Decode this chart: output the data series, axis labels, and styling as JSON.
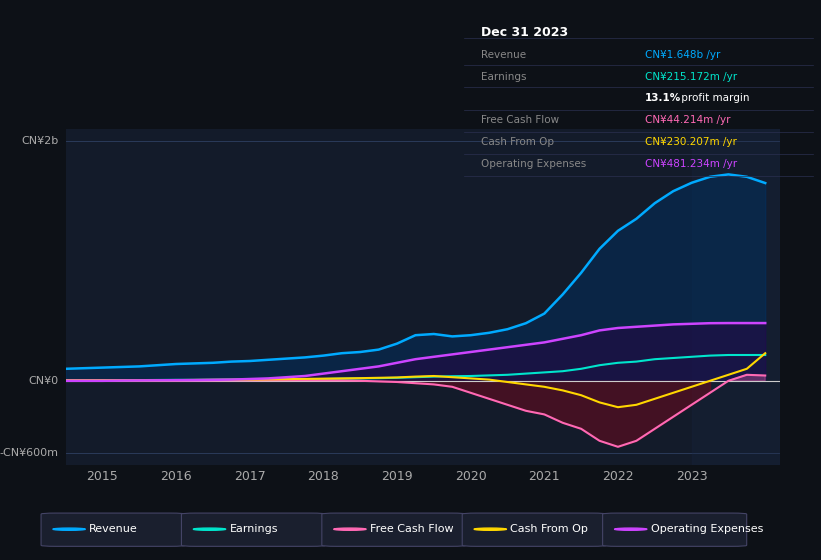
{
  "bg_color": "#0d1117",
  "plot_bg_color": "#131b2a",
  "title_box_text": "Dec 31 2023",
  "info_rows": [
    {
      "label": "Revenue",
      "value": "CN¥1.648b /yr",
      "color": "#00aaff"
    },
    {
      "label": "Earnings",
      "value": "CN¥215.172m /yr",
      "color": "#00e5cc"
    },
    {
      "label": "",
      "value": "13.1% profit margin",
      "color": "#ffffff"
    },
    {
      "label": "Free Cash Flow",
      "value": "CN¥44.214m /yr",
      "color": "#ff69b4"
    },
    {
      "label": "Cash From Op",
      "value": "CN¥230.207m /yr",
      "color": "#ffd700"
    },
    {
      "label": "Operating Expenses",
      "value": "CN¥481.234m /yr",
      "color": "#cc44ff"
    }
  ],
  "ylabel_top": "CN¥2b",
  "ylabel_mid": "CN¥0",
  "ylabel_bot": "-CN¥600m",
  "xlim": [
    2014.5,
    2024.2
  ],
  "ylim_min": -700,
  "ylim_max": 2100,
  "y_zero": 0,
  "y_top": 2000,
  "y_bot": -600,
  "xticks": [
    2015,
    2016,
    2017,
    2018,
    2019,
    2020,
    2021,
    2022,
    2023
  ],
  "legend_items": [
    {
      "label": "Revenue",
      "color": "#00aaff"
    },
    {
      "label": "Earnings",
      "color": "#00e5cc"
    },
    {
      "label": "Free Cash Flow",
      "color": "#ff69b4"
    },
    {
      "label": "Cash From Op",
      "color": "#ffd700"
    },
    {
      "label": "Operating Expenses",
      "color": "#cc44ff"
    }
  ],
  "revenue": {
    "color": "#00aaff",
    "fill_color": "#003366",
    "x": [
      2014.5,
      2015,
      2015.25,
      2015.5,
      2015.75,
      2016,
      2016.25,
      2016.5,
      2016.75,
      2017,
      2017.25,
      2017.5,
      2017.75,
      2018,
      2018.25,
      2018.5,
      2018.75,
      2019,
      2019.25,
      2019.5,
      2019.75,
      2020,
      2020.25,
      2020.5,
      2020.75,
      2021,
      2021.25,
      2021.5,
      2021.75,
      2022,
      2022.25,
      2022.5,
      2022.75,
      2023,
      2023.25,
      2023.5,
      2023.75,
      2024.0
    ],
    "y": [
      100,
      110,
      115,
      120,
      130,
      140,
      145,
      150,
      160,
      165,
      175,
      185,
      195,
      210,
      230,
      240,
      260,
      310,
      380,
      390,
      370,
      380,
      400,
      430,
      480,
      560,
      720,
      900,
      1100,
      1250,
      1350,
      1480,
      1580,
      1650,
      1700,
      1720,
      1700,
      1648
    ]
  },
  "earnings": {
    "color": "#00e5cc",
    "x": [
      2014.5,
      2015,
      2015.25,
      2015.5,
      2015.75,
      2016,
      2016.25,
      2016.5,
      2016.75,
      2017,
      2017.25,
      2017.5,
      2017.75,
      2018,
      2018.25,
      2018.5,
      2018.75,
      2019,
      2019.25,
      2019.5,
      2019.75,
      2020,
      2020.25,
      2020.5,
      2020.75,
      2021,
      2021.25,
      2021.5,
      2021.75,
      2022,
      2022.25,
      2022.5,
      2022.75,
      2023,
      2023.25,
      2023.5,
      2023.75,
      2024.0
    ],
    "y": [
      5,
      5,
      6,
      6,
      7,
      8,
      8,
      9,
      10,
      11,
      12,
      13,
      14,
      15,
      18,
      20,
      22,
      25,
      30,
      35,
      38,
      40,
      45,
      50,
      60,
      70,
      80,
      100,
      130,
      150,
      160,
      180,
      190,
      200,
      210,
      215,
      215,
      215
    ]
  },
  "free_cash_flow": {
    "color": "#ff69b4",
    "x": [
      2014.5,
      2015,
      2015.25,
      2015.5,
      2015.75,
      2016,
      2016.25,
      2016.5,
      2016.75,
      2017,
      2017.25,
      2017.5,
      2017.75,
      2018,
      2018.25,
      2018.5,
      2018.75,
      2019,
      2019.25,
      2019.5,
      2019.75,
      2020,
      2020.25,
      2020.5,
      2020.75,
      2021,
      2021.25,
      2021.5,
      2021.75,
      2022,
      2022.25,
      2022.5,
      2022.75,
      2023,
      2023.25,
      2023.5,
      2023.75,
      2024.0
    ],
    "y": [
      5,
      5,
      5,
      3,
      3,
      2,
      3,
      3,
      4,
      4,
      5,
      5,
      5,
      4,
      3,
      0,
      -5,
      -10,
      -20,
      -30,
      -50,
      -100,
      -150,
      -200,
      -250,
      -280,
      -350,
      -400,
      -500,
      -550,
      -500,
      -400,
      -300,
      -200,
      -100,
      0,
      50,
      44
    ]
  },
  "cash_from_op": {
    "color": "#ffd700",
    "x": [
      2014.5,
      2015,
      2015.25,
      2015.5,
      2015.75,
      2016,
      2016.25,
      2016.5,
      2016.75,
      2017,
      2017.25,
      2017.5,
      2017.75,
      2018,
      2018.25,
      2018.5,
      2018.75,
      2019,
      2019.25,
      2019.5,
      2019.75,
      2020,
      2020.25,
      2020.5,
      2020.75,
      2021,
      2021.25,
      2021.5,
      2021.75,
      2022,
      2022.25,
      2022.5,
      2022.75,
      2023,
      2023.25,
      2023.5,
      2023.75,
      2024.0
    ],
    "y": [
      3,
      3,
      4,
      4,
      5,
      6,
      7,
      8,
      9,
      10,
      12,
      14,
      16,
      18,
      20,
      22,
      25,
      28,
      35,
      40,
      30,
      20,
      10,
      -10,
      -30,
      -50,
      -80,
      -120,
      -180,
      -220,
      -200,
      -150,
      -100,
      -50,
      0,
      50,
      100,
      230
    ]
  },
  "operating_expenses": {
    "color": "#cc44ff",
    "fill_color": "#2a0044",
    "x": [
      2014.5,
      2015,
      2015.25,
      2015.5,
      2015.75,
      2016,
      2016.25,
      2016.5,
      2016.75,
      2017,
      2017.25,
      2017.5,
      2017.75,
      2018,
      2018.25,
      2018.5,
      2018.75,
      2019,
      2019.25,
      2019.5,
      2019.75,
      2020,
      2020.25,
      2020.5,
      2020.75,
      2021,
      2021.25,
      2021.5,
      2021.75,
      2022,
      2022.25,
      2022.5,
      2022.75,
      2023,
      2023.25,
      2023.5,
      2023.75,
      2024.0
    ],
    "y": [
      0,
      0,
      2,
      3,
      4,
      5,
      6,
      8,
      10,
      15,
      20,
      30,
      40,
      60,
      80,
      100,
      120,
      150,
      180,
      200,
      220,
      240,
      260,
      280,
      300,
      320,
      350,
      380,
      420,
      440,
      450,
      460,
      470,
      475,
      480,
      481,
      481,
      481
    ]
  }
}
